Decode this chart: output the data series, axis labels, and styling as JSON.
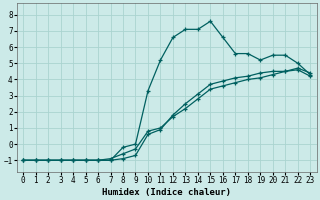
{
  "xlabel": "Humidex (Indice chaleur)",
  "bg_color": "#cceae8",
  "grid_color": "#aad4d0",
  "line_color": "#006060",
  "xlim": [
    -0.5,
    23.5
  ],
  "ylim": [
    -1.7,
    8.7
  ],
  "xticks": [
    0,
    1,
    2,
    3,
    4,
    5,
    6,
    7,
    8,
    9,
    10,
    11,
    12,
    13,
    14,
    15,
    16,
    17,
    18,
    19,
    20,
    21,
    22,
    23
  ],
  "yticks": [
    -1,
    0,
    1,
    2,
    3,
    4,
    5,
    6,
    7,
    8
  ],
  "line1_x": [
    0,
    1,
    2,
    3,
    4,
    5,
    6,
    7,
    8,
    9,
    10,
    11,
    12,
    13,
    14,
    15,
    16,
    17,
    18,
    19,
    20,
    21,
    22,
    23
  ],
  "line1_y": [
    -1,
    -1,
    -1,
    -1,
    -1,
    -1,
    -1,
    -1,
    -0.2,
    0.0,
    3.3,
    5.2,
    6.6,
    7.1,
    7.1,
    7.6,
    6.6,
    5.6,
    5.6,
    5.2,
    5.5,
    5.5,
    5.0,
    4.3
  ],
  "line2_x": [
    0,
    1,
    2,
    3,
    4,
    5,
    6,
    7,
    8,
    9,
    10,
    11,
    12,
    13,
    14,
    15,
    16,
    17,
    18,
    19,
    20,
    21,
    22,
    23
  ],
  "line2_y": [
    -1,
    -1,
    -1,
    -1,
    -1,
    -1,
    -1,
    -0.9,
    -0.6,
    -0.3,
    0.8,
    1.0,
    1.7,
    2.2,
    2.8,
    3.4,
    3.6,
    3.8,
    4.0,
    4.1,
    4.3,
    4.5,
    4.7,
    4.4
  ],
  "line3_x": [
    0,
    1,
    2,
    3,
    4,
    5,
    6,
    7,
    8,
    9,
    10,
    11,
    12,
    13,
    14,
    15,
    16,
    17,
    18,
    19,
    20,
    21,
    22,
    23
  ],
  "line3_y": [
    -1,
    -1,
    -1,
    -1,
    -1,
    -1,
    -1,
    -1,
    -0.9,
    -0.7,
    0.6,
    0.9,
    1.8,
    2.5,
    3.1,
    3.7,
    3.9,
    4.1,
    4.2,
    4.4,
    4.5,
    4.5,
    4.6,
    4.2
  ]
}
